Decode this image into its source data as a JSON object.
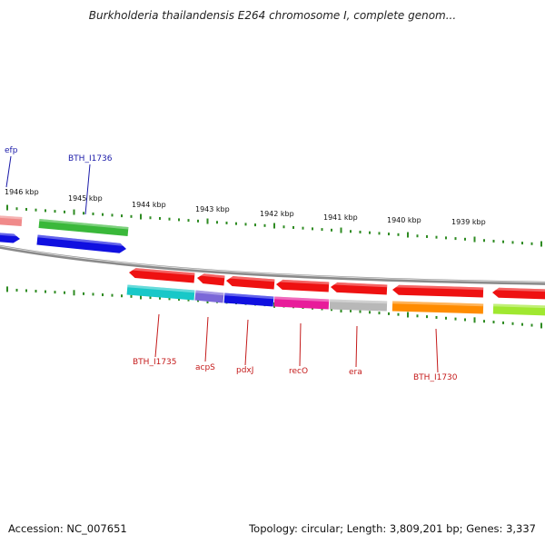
{
  "title": "Burkholderia thailandensis E264 chromosome I, complete genom...",
  "footer": {
    "accession": "Accession: NC_007651",
    "topology": "Topology: circular; Length: 3,809,201 bp; Genes: 3,337"
  },
  "colors": {
    "backbone": "#8a8a8a",
    "tick": "#2e8b22",
    "forward_label": "#1a1aa8",
    "reverse_label": "#c41a1a"
  },
  "scale_labels": [
    "1946 kbp",
    "1945 kbp",
    "1944 kbp",
    "1943 kbp",
    "1942 kbp",
    "1941 kbp",
    "1940 kbp",
    "1939 kbp"
  ],
  "genes": [
    {
      "id": "efp",
      "label": "efp",
      "strand": "forward",
      "color": "#1010e0"
    },
    {
      "id": "efp-upper",
      "label": "",
      "strand": "forward",
      "color": "#f08a8a"
    },
    {
      "id": "bth_i1736",
      "label": "BTH_I1736",
      "strand": "forward",
      "color": "#1010e0"
    },
    {
      "id": "bth_i1736-upper",
      "label": "",
      "strand": "forward",
      "color": "#3ab83a"
    },
    {
      "id": "bth_i1735",
      "label": "BTH_I1735",
      "strand": "reverse",
      "color": "#ee1111"
    },
    {
      "id": "acps",
      "label": "acpS",
      "strand": "reverse",
      "color": "#ee1111"
    },
    {
      "id": "pdxj",
      "label": "pdxJ",
      "strand": "reverse",
      "color": "#ee1111"
    },
    {
      "id": "reco",
      "label": "recO",
      "strand": "reverse",
      "color": "#ee1111"
    },
    {
      "id": "era",
      "label": "era",
      "strand": "reverse",
      "color": "#ee1111"
    },
    {
      "id": "bth_i1730",
      "label": "BTH_I1730",
      "strand": "reverse",
      "color": "#ee1111"
    },
    {
      "id": "next-reverse",
      "label": "",
      "strand": "reverse",
      "color": "#ee1111"
    }
  ],
  "category_segments": [
    {
      "gene": "BTH_I1735",
      "color": "#18c8c8"
    },
    {
      "gene": "acpS",
      "color": "#7b68d8"
    },
    {
      "gene": "pdxJ",
      "color": "#1010e0"
    },
    {
      "gene": "recO",
      "color": "#e81c9a"
    },
    {
      "gene": "era",
      "color": "#b8b8b8"
    },
    {
      "gene": "BTH_I1730",
      "color": "#ff8c00"
    },
    {
      "gene": "next",
      "color": "#a0e830"
    }
  ]
}
